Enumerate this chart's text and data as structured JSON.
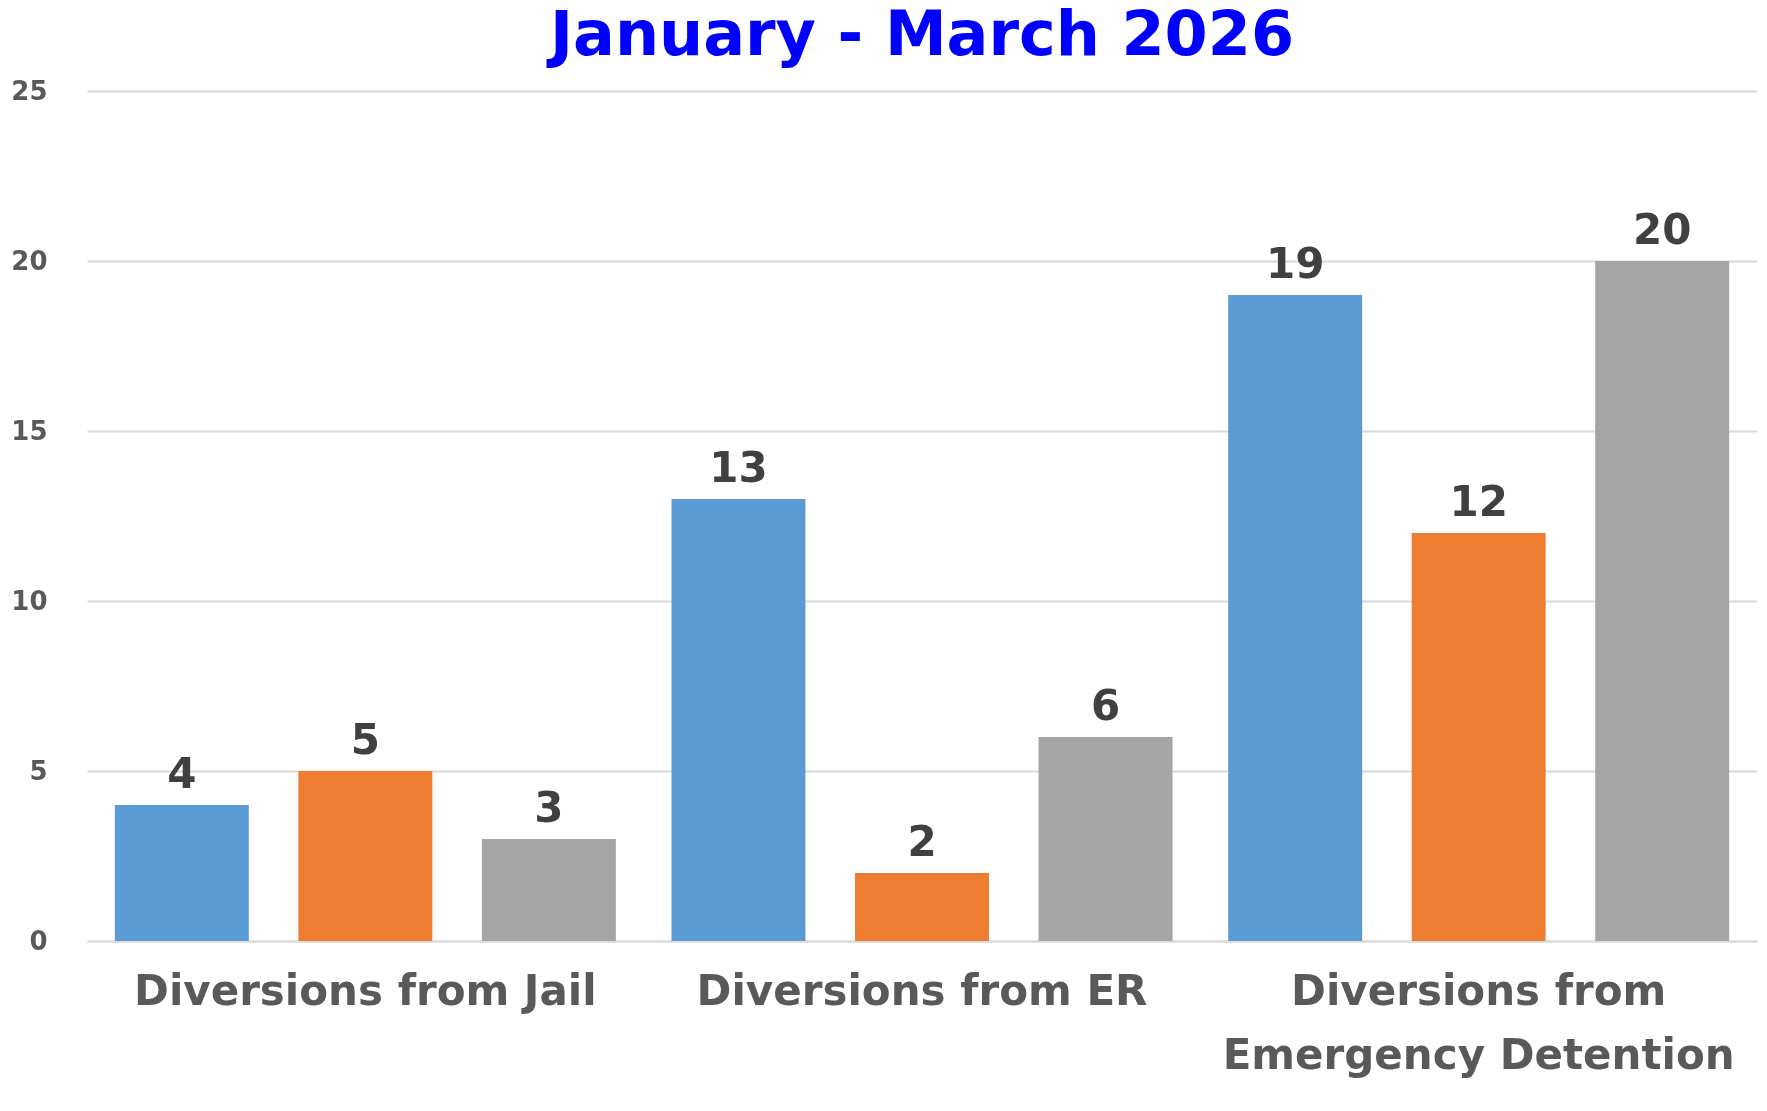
{
  "chart_data": {
    "type": "bar",
    "title": "January - March 2026",
    "categories": [
      "Diversions from Jail",
      "Diversions from ER",
      "Diversions from Emergency Detention"
    ],
    "series": [
      {
        "color": "#5b9bd5",
        "values": [
          4,
          13,
          19
        ]
      },
      {
        "color": "#ed7d31",
        "values": [
          5,
          2,
          12
        ]
      },
      {
        "color": "#a5a5a5",
        "values": [
          3,
          6,
          20
        ]
      }
    ],
    "ylim": [
      0,
      25
    ],
    "yticks": [
      0,
      5,
      10,
      15,
      20,
      25
    ],
    "grid": "y",
    "legend": false,
    "data_labels": true
  }
}
